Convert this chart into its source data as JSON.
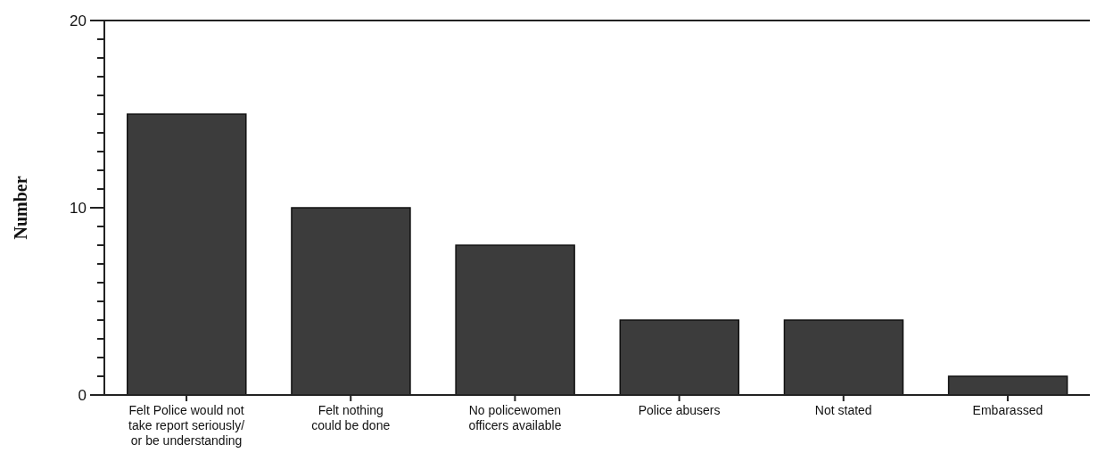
{
  "chart_data": {
    "type": "bar",
    "ylabel": "Number",
    "categories": [
      "Felt Police would not\ntake report seriously/\nor be understanding",
      "Felt nothing\ncould be done",
      "No policewomen\nofficers available",
      "Police abusers",
      "Not stated",
      "Embarassed"
    ],
    "values": [
      15,
      10,
      8,
      4,
      4,
      1
    ],
    "color": "#3c3c3c",
    "ylim": [
      0,
      20
    ],
    "yticks": [
      0,
      {
        "value": 1,
        "label": null
      },
      {
        "value": 2,
        "label": null
      },
      {
        "value": 3,
        "label": null
      },
      {
        "value": 4,
        "label": null
      },
      {
        "value": 5,
        "label": null
      },
      {
        "value": 6,
        "label": null
      },
      {
        "value": 7,
        "label": null
      },
      {
        "value": 8,
        "label": null
      },
      {
        "value": 9,
        "label": null
      },
      10,
      {
        "value": 11,
        "label": null
      },
      {
        "value": 12,
        "label": null
      },
      {
        "value": 13,
        "label": null
      },
      {
        "value": 14,
        "label": null
      },
      {
        "value": 15,
        "label": null
      },
      {
        "value": 16,
        "label": null
      },
      {
        "value": 17,
        "label": null
      },
      {
        "value": 18,
        "label": null
      },
      {
        "value": 19,
        "label": null
      },
      20
    ],
    "grid": false,
    "legend": false
  }
}
